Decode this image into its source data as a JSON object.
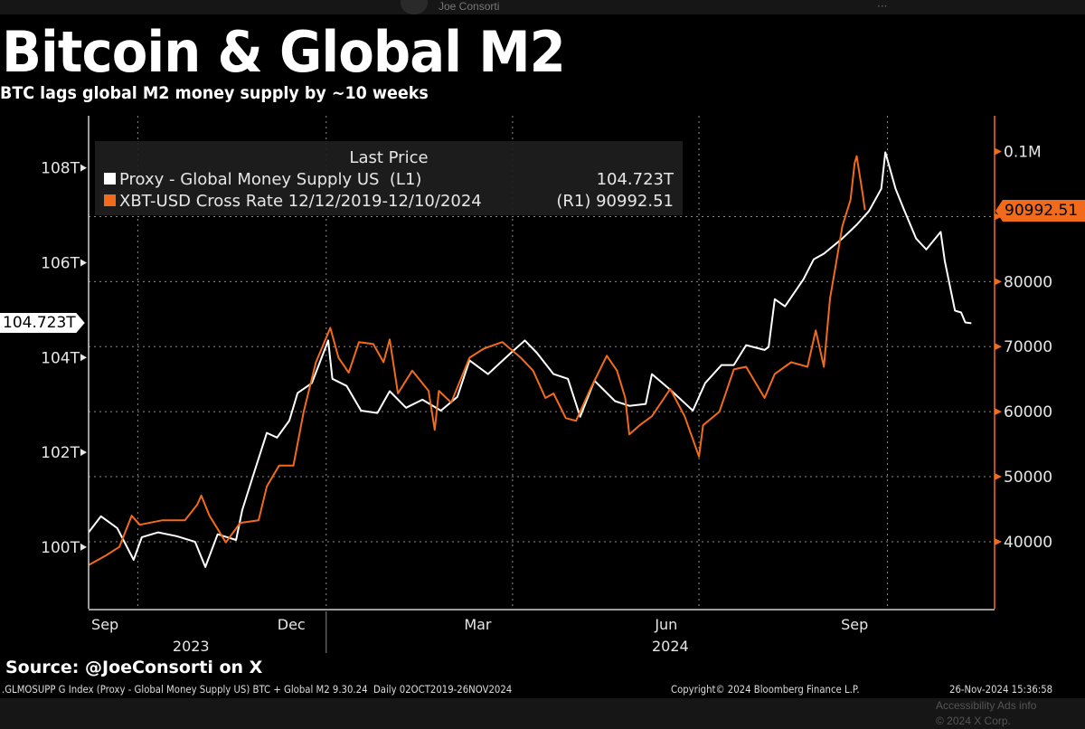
{
  "x_ui": {
    "author": "Joe Consorti",
    "footer_links": "Accessibility   Ads info",
    "copyright": "© 2024 X Corp."
  },
  "title": "Bitcoin & Global M2",
  "subtitle": "BTC lags global M2 money supply by ~10 weeks",
  "source": "Source: @JoeConsorti on X",
  "footer": {
    "index": ".GLMOSUPP G Index (Proxy - Global Money Supply US) BTC + Global M2 9.30.24  Daily 02OCT2019-26NOV2024",
    "copyright": "Copyright© 2024 Bloomberg Finance L.P.",
    "timestamp": "26-Nov-2024 15:36:58"
  },
  "legend": {
    "header": "Last Price",
    "items": [
      {
        "label": "Proxy - Global Money Supply US  (L1)",
        "value": "104.723T",
        "color": "#ffffff"
      },
      {
        "label": "XBT-USD Cross Rate 12/12/2019-12/10/2024",
        "value": "(R1) 90992.51",
        "color": "#f26a1b"
      }
    ]
  },
  "chart_data": {
    "type": "line",
    "title": "Bitcoin & Global M2",
    "subtitle": "BTC lags global M2 money supply by ~10 weeks",
    "grid": true,
    "legend_position": "top-left",
    "x_range": [
      "2023-09-07",
      "2024-11-21"
    ],
    "x_tick_labels": [
      {
        "label": "Sep",
        "date": "2023-09-15"
      },
      {
        "label": "Dec",
        "date": "2023-12-15"
      },
      {
        "label": "Mar",
        "date": "2024-03-15"
      },
      {
        "label": "Jun",
        "date": "2024-06-15"
      },
      {
        "label": "Sep",
        "date": "2024-09-15"
      }
    ],
    "year_labels": [
      {
        "label": "2023",
        "date": "2023-10-27"
      },
      {
        "label": "2024",
        "date": "2024-06-17"
      }
    ],
    "left_axis": {
      "unit": "T",
      "range": [
        98.7,
        109.1
      ],
      "ticks": [
        {
          "value": 100,
          "label": "100T"
        },
        {
          "value": 102,
          "label": "102T"
        },
        {
          "value": 104,
          "label": "104T"
        },
        {
          "value": 106,
          "label": "106T"
        },
        {
          "value": 108,
          "label": "108T"
        }
      ],
      "last_value_label": "104.723T"
    },
    "right_axis": {
      "range": [
        29700,
        105500
      ],
      "ticks": [
        {
          "value": 40000,
          "label": "40000"
        },
        {
          "value": 50000,
          "label": "50000"
        },
        {
          "value": 60000,
          "label": "60000"
        },
        {
          "value": 70000,
          "label": "70000"
        },
        {
          "value": 80000,
          "label": "80000"
        },
        {
          "value": 90000,
          "label": ""
        },
        {
          "value": 100000,
          "label": "0.1M"
        }
      ],
      "last_value_label": "90992.51",
      "color": "#f26a1b"
    },
    "series": [
      {
        "name": "Proxy - Global Money Supply US  (L1)",
        "axis": "left",
        "color": "#ffffff",
        "points": [
          [
            "2023-09-07",
            100.31
          ],
          [
            "2023-09-13",
            100.65
          ],
          [
            "2023-09-21",
            100.4
          ],
          [
            "2023-09-29",
            99.73
          ],
          [
            "2023-10-03",
            100.21
          ],
          [
            "2023-10-11",
            100.31
          ],
          [
            "2023-10-20",
            100.23
          ],
          [
            "2023-10-29",
            100.11
          ],
          [
            "2023-11-03",
            99.58
          ],
          [
            "2023-11-09",
            100.27
          ],
          [
            "2023-11-18",
            100.15
          ],
          [
            "2023-11-21",
            100.78
          ],
          [
            "2023-11-27",
            101.6
          ],
          [
            "2023-12-03",
            102.41
          ],
          [
            "2023-12-08",
            102.31
          ],
          [
            "2023-12-14",
            102.67
          ],
          [
            "2023-12-18",
            103.25
          ],
          [
            "2023-12-25",
            103.46
          ],
          [
            "2024-01-02",
            104.36
          ],
          [
            "2024-01-04",
            103.55
          ],
          [
            "2024-01-11",
            103.4
          ],
          [
            "2024-01-18",
            102.88
          ],
          [
            "2024-01-26",
            102.83
          ],
          [
            "2024-02-01",
            103.29
          ],
          [
            "2024-02-09",
            102.94
          ],
          [
            "2024-02-17",
            103.11
          ],
          [
            "2024-02-26",
            102.88
          ],
          [
            "2024-03-05",
            103.17
          ],
          [
            "2024-03-11",
            103.94
          ],
          [
            "2024-03-20",
            103.65
          ],
          [
            "2024-03-31",
            104.09
          ],
          [
            "2024-04-07",
            104.36
          ],
          [
            "2024-04-13",
            104.09
          ],
          [
            "2024-04-21",
            103.65
          ],
          [
            "2024-04-28",
            103.55
          ],
          [
            "2024-05-04",
            102.75
          ],
          [
            "2024-05-11",
            103.51
          ],
          [
            "2024-05-21",
            103.08
          ],
          [
            "2024-05-28",
            102.98
          ],
          [
            "2024-06-05",
            103.02
          ],
          [
            "2024-06-08",
            103.65
          ],
          [
            "2024-06-17",
            103.32
          ],
          [
            "2024-06-28",
            102.88
          ],
          [
            "2024-07-04",
            103.46
          ],
          [
            "2024-07-12",
            103.84
          ],
          [
            "2024-07-18",
            103.84
          ],
          [
            "2024-07-24",
            104.26
          ],
          [
            "2024-08-02",
            104.16
          ],
          [
            "2024-08-04",
            104.22
          ],
          [
            "2024-08-07",
            105.23
          ],
          [
            "2024-08-12",
            105.08
          ],
          [
            "2024-08-21",
            105.65
          ],
          [
            "2024-08-26",
            106.07
          ],
          [
            "2024-08-31",
            106.19
          ],
          [
            "2024-09-09",
            106.51
          ],
          [
            "2024-09-16",
            106.8
          ],
          [
            "2024-09-22",
            107.09
          ],
          [
            "2024-09-28",
            107.56
          ],
          [
            "2024-09-30",
            108.33
          ],
          [
            "2024-10-05",
            107.56
          ],
          [
            "2024-10-09",
            107.13
          ],
          [
            "2024-10-15",
            106.51
          ],
          [
            "2024-10-20",
            106.28
          ],
          [
            "2024-10-27",
            106.65
          ],
          [
            "2024-10-29",
            106.04
          ],
          [
            "2024-11-03",
            104.99
          ],
          [
            "2024-11-06",
            104.95
          ],
          [
            "2024-11-08",
            104.74
          ],
          [
            "2024-11-11",
            104.723
          ]
        ]
      },
      {
        "name": "XBT-USD Cross Rate 12/12/2019-12/10/2024",
        "axis": "right",
        "color": "#f26a1b",
        "points": [
          [
            "2023-09-07",
            36400
          ],
          [
            "2023-09-15",
            37800
          ],
          [
            "2023-09-22",
            39200
          ],
          [
            "2023-09-28",
            44000
          ],
          [
            "2023-10-02",
            42600
          ],
          [
            "2023-10-13",
            43300
          ],
          [
            "2023-10-24",
            43300
          ],
          [
            "2023-10-30",
            45700
          ],
          [
            "2023-11-01",
            47100
          ],
          [
            "2023-11-05",
            44000
          ],
          [
            "2023-11-13",
            39900
          ],
          [
            "2023-11-20",
            42900
          ],
          [
            "2023-11-29",
            43300
          ],
          [
            "2023-12-03",
            48500
          ],
          [
            "2023-12-09",
            51700
          ],
          [
            "2023-12-16",
            51700
          ],
          [
            "2023-12-21",
            60000
          ],
          [
            "2023-12-27",
            67600
          ],
          [
            "2024-01-02",
            72100
          ],
          [
            "2024-01-03",
            72900
          ],
          [
            "2024-01-07",
            68300
          ],
          [
            "2024-01-12",
            66000
          ],
          [
            "2024-01-17",
            70700
          ],
          [
            "2024-01-24",
            70400
          ],
          [
            "2024-01-29",
            67600
          ],
          [
            "2024-02-01",
            71100
          ],
          [
            "2024-02-05",
            62800
          ],
          [
            "2024-02-12",
            66300
          ],
          [
            "2024-02-20",
            63200
          ],
          [
            "2024-02-23",
            57200
          ],
          [
            "2024-02-25",
            63200
          ],
          [
            "2024-03-02",
            61400
          ],
          [
            "2024-03-11",
            68300
          ],
          [
            "2024-03-18",
            69700
          ],
          [
            "2024-03-27",
            70700
          ],
          [
            "2024-04-05",
            68300
          ],
          [
            "2024-04-11",
            66300
          ],
          [
            "2024-04-17",
            62100
          ],
          [
            "2024-04-21",
            62800
          ],
          [
            "2024-04-27",
            59000
          ],
          [
            "2024-05-02",
            58600
          ],
          [
            "2024-05-09",
            63500
          ],
          [
            "2024-05-17",
            68600
          ],
          [
            "2024-05-22",
            66300
          ],
          [
            "2024-05-26",
            62100
          ],
          [
            "2024-05-28",
            56500
          ],
          [
            "2024-06-02",
            57900
          ],
          [
            "2024-06-08",
            59300
          ],
          [
            "2024-06-17",
            63500
          ],
          [
            "2024-06-24",
            59300
          ],
          [
            "2024-07-01",
            53100
          ],
          [
            "2024-07-03",
            57900
          ],
          [
            "2024-07-11",
            60000
          ],
          [
            "2024-07-18",
            66500
          ],
          [
            "2024-07-24",
            66900
          ],
          [
            "2024-08-02",
            62100
          ],
          [
            "2024-08-07",
            65800
          ],
          [
            "2024-08-15",
            67600
          ],
          [
            "2024-08-23",
            66900
          ],
          [
            "2024-08-27",
            72500
          ],
          [
            "2024-08-31",
            66900
          ],
          [
            "2024-09-03",
            77400
          ],
          [
            "2024-09-06",
            82900
          ],
          [
            "2024-09-09",
            88500
          ],
          [
            "2024-09-13",
            92600
          ],
          [
            "2024-09-15",
            98200
          ],
          [
            "2024-09-16",
            99300
          ],
          [
            "2024-09-19",
            93300
          ],
          [
            "2024-09-20",
            90992.51
          ]
        ]
      }
    ]
  }
}
